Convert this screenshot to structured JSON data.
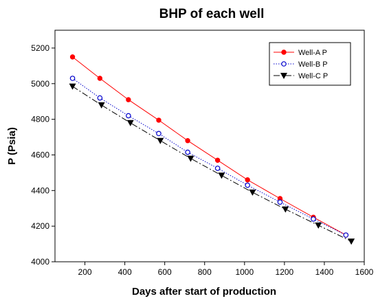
{
  "chart_data": {
    "type": "line",
    "title": "BHP of each well",
    "xlabel": "Days after start of production",
    "ylabel": "P (Psia)",
    "xlim": [
      50,
      1600
    ],
    "ylim": [
      4000,
      5300
    ],
    "xticks": [
      200,
      400,
      600,
      800,
      1000,
      1200,
      1400,
      1600
    ],
    "yticks": [
      4000,
      4200,
      4400,
      4600,
      4800,
      5000,
      5200
    ],
    "grid": false,
    "legend_position": "top-right",
    "series": [
      {
        "name": "Well-A P",
        "color": "#ff0000",
        "line_style": "solid",
        "marker": "filled-circle",
        "x": [
          138,
          275,
          418,
          570,
          715,
          865,
          1015,
          1178,
          1345,
          1508
        ],
        "y": [
          5150,
          5030,
          4910,
          4795,
          4680,
          4570,
          4460,
          4355,
          4250,
          4150
        ]
      },
      {
        "name": "Well-B P",
        "color": "#0000cc",
        "line_style": "dotted",
        "marker": "open-circle",
        "x": [
          138,
          275,
          418,
          570,
          715,
          865,
          1015,
          1178,
          1345,
          1508
        ],
        "y": [
          5030,
          4920,
          4820,
          4720,
          4615,
          4525,
          4430,
          4335,
          4240,
          4150
        ]
      },
      {
        "name": "Well-C P",
        "color": "#000000",
        "line_style": "dash-dot",
        "marker": "filled-triangle-down",
        "x": [
          138,
          283,
          428,
          578,
          730,
          885,
          1040,
          1205,
          1370,
          1535
        ],
        "y": [
          4985,
          4880,
          4780,
          4680,
          4580,
          4485,
          4390,
          4295,
          4205,
          4115
        ]
      }
    ]
  }
}
